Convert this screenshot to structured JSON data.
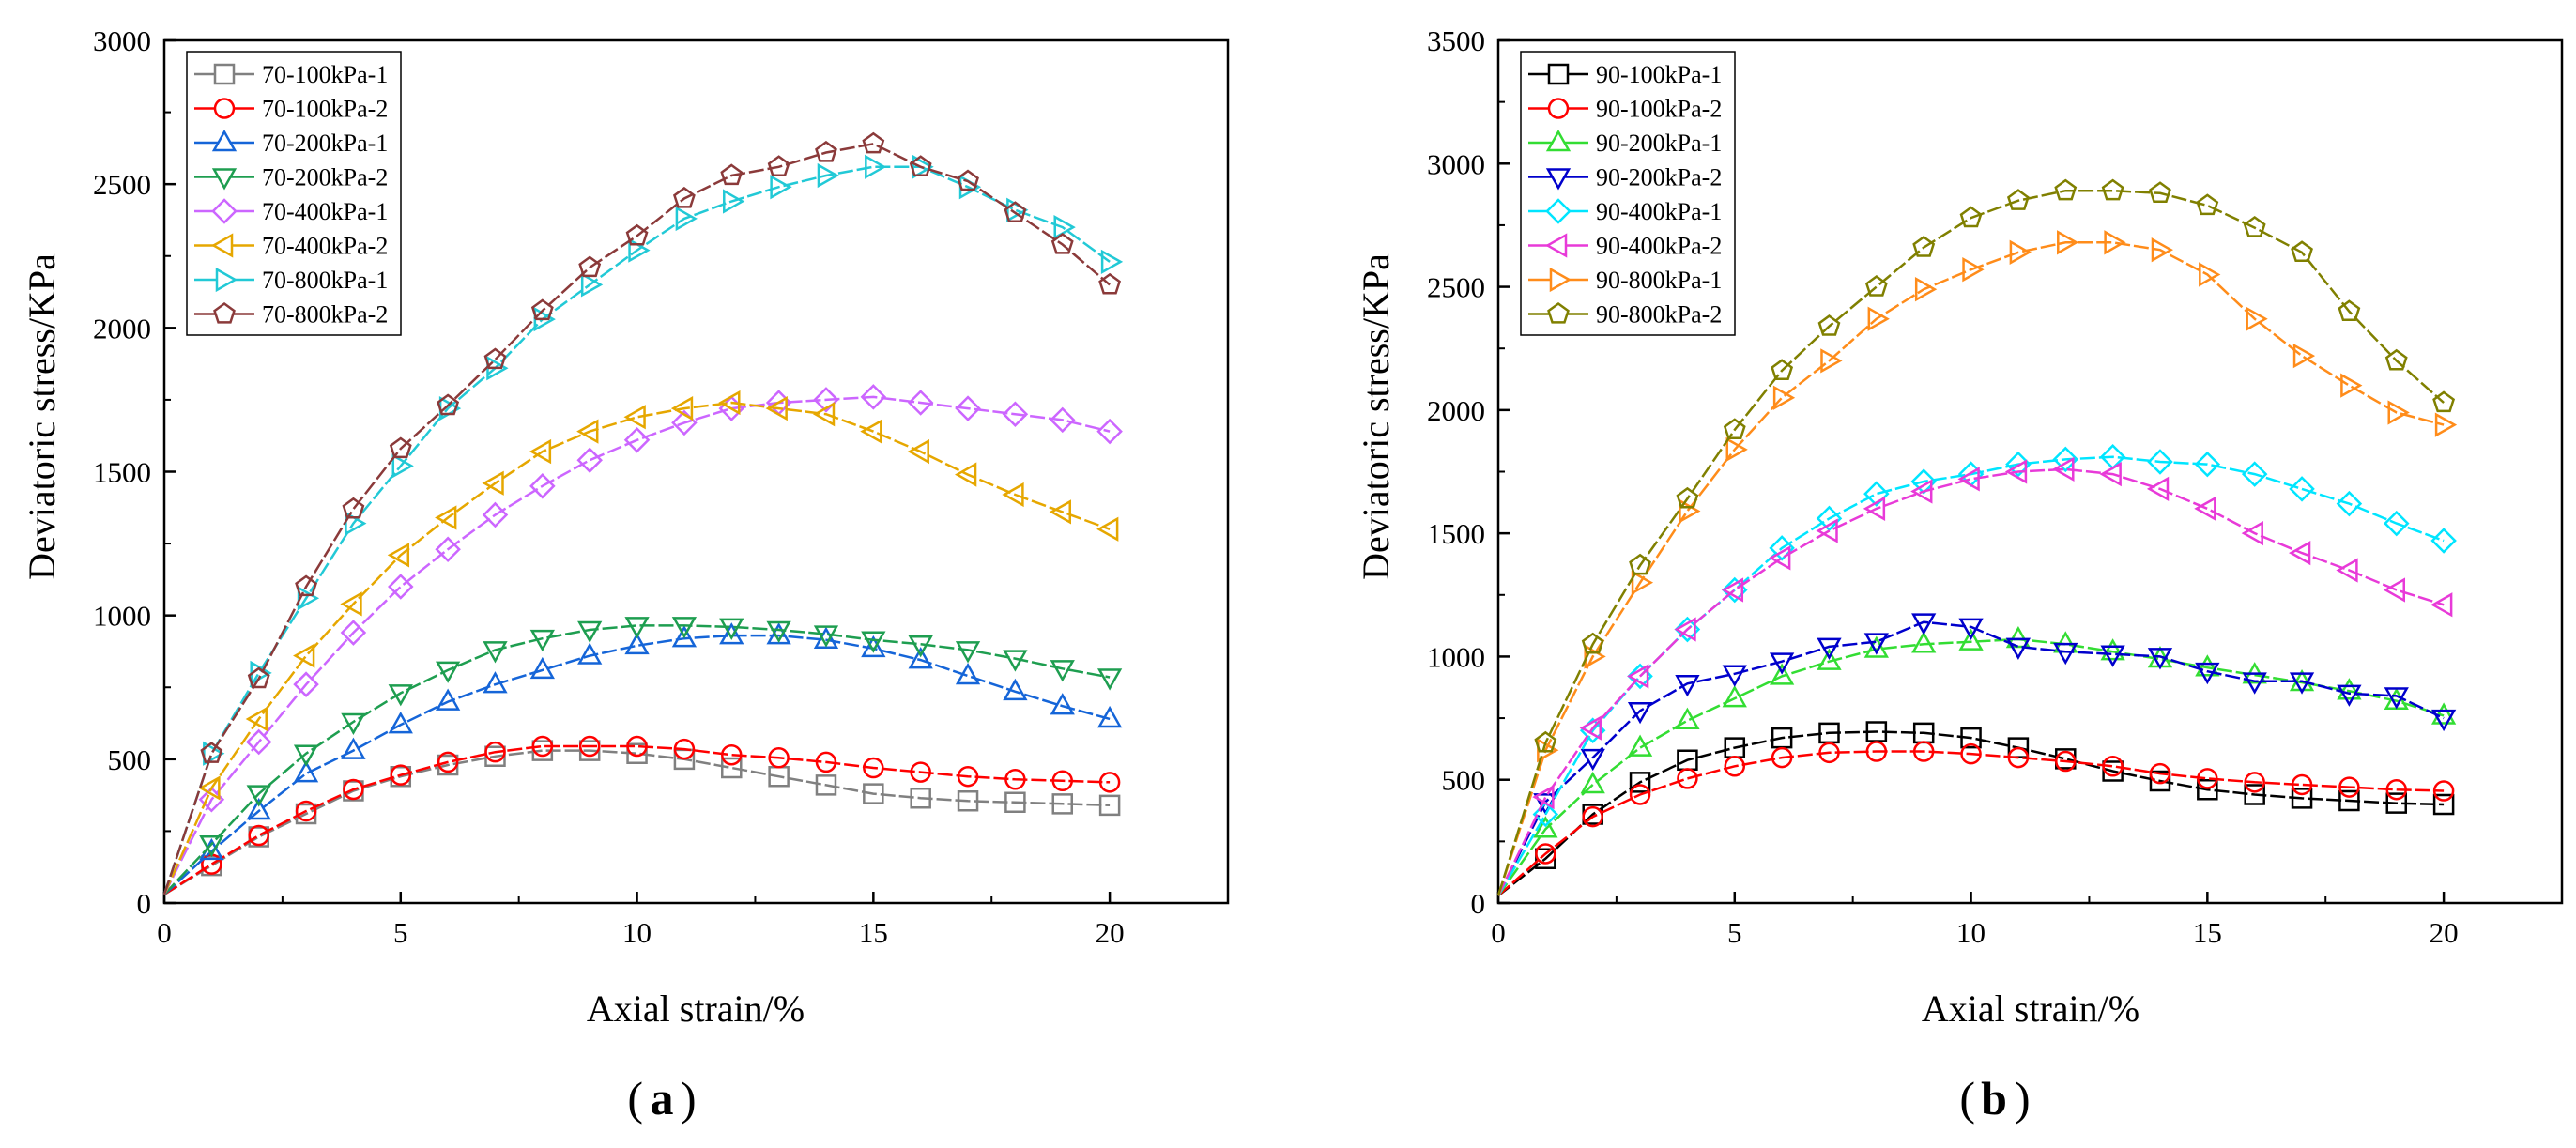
{
  "chart_data": [
    {
      "type": "line",
      "panel_label": "a",
      "xlabel": "Axial strain/%",
      "ylabel": "Deviatoric stress/KPa",
      "xlim": [
        0,
        22.5
      ],
      "ylim": [
        0,
        3000
      ],
      "xticks": [
        0,
        5,
        10,
        15,
        20
      ],
      "yticks": [
        0,
        500,
        1000,
        1500,
        2000,
        2500,
        3000
      ],
      "legend_position": "top-left",
      "x": [
        0,
        1,
        2,
        3,
        4,
        5,
        6,
        7,
        8,
        9,
        10,
        11,
        12,
        13,
        14,
        15,
        16,
        17,
        18,
        19,
        20
      ],
      "series": [
        {
          "name": "70-100kPa-1",
          "color": "#808080",
          "marker": "square",
          "values": [
            30,
            130,
            230,
            310,
            390,
            440,
            480,
            510,
            530,
            530,
            520,
            500,
            470,
            440,
            410,
            380,
            365,
            355,
            350,
            345,
            340
          ]
        },
        {
          "name": "70-100kPa-2",
          "color": "#ff0000",
          "marker": "circle",
          "values": [
            30,
            135,
            235,
            320,
            395,
            445,
            490,
            525,
            545,
            545,
            545,
            535,
            515,
            505,
            490,
            470,
            455,
            440,
            430,
            425,
            420
          ]
        },
        {
          "name": "70-200kPa-1",
          "color": "#1565d8",
          "marker": "triangle-up",
          "values": [
            30,
            180,
            320,
            450,
            530,
            620,
            700,
            760,
            810,
            860,
            895,
            920,
            930,
            930,
            915,
            885,
            845,
            790,
            735,
            685,
            640
          ]
        },
        {
          "name": "70-200kPa-2",
          "color": "#1e9e50",
          "marker": "triangle-down",
          "values": [
            30,
            205,
            380,
            520,
            630,
            730,
            810,
            880,
            920,
            950,
            965,
            965,
            960,
            950,
            935,
            915,
            900,
            880,
            850,
            815,
            785
          ]
        },
        {
          "name": "70-400kPa-1",
          "color": "#cc66ff",
          "marker": "diamond",
          "values": [
            30,
            360,
            560,
            760,
            940,
            1100,
            1230,
            1350,
            1450,
            1540,
            1610,
            1670,
            1720,
            1740,
            1750,
            1760,
            1740,
            1720,
            1700,
            1680,
            1640
          ]
        },
        {
          "name": "70-400kPa-2",
          "color": "#e6a700",
          "marker": "triangle-left",
          "values": [
            30,
            400,
            640,
            860,
            1040,
            1210,
            1340,
            1460,
            1570,
            1640,
            1690,
            1720,
            1740,
            1720,
            1700,
            1640,
            1570,
            1490,
            1420,
            1360,
            1300
          ]
        },
        {
          "name": "70-800kPa-1",
          "color": "#22c9d6",
          "marker": "triangle-right",
          "values": [
            30,
            520,
            800,
            1060,
            1320,
            1520,
            1720,
            1860,
            2030,
            2150,
            2270,
            2380,
            2440,
            2490,
            2530,
            2560,
            2560,
            2490,
            2410,
            2350,
            2230
          ]
        },
        {
          "name": "70-800kPa-2",
          "color": "#8b3a3a",
          "marker": "pentagon",
          "values": [
            30,
            520,
            780,
            1100,
            1370,
            1580,
            1730,
            1890,
            2060,
            2210,
            2320,
            2450,
            2530,
            2560,
            2610,
            2640,
            2560,
            2510,
            2400,
            2290,
            2150
          ]
        }
      ]
    },
    {
      "type": "line",
      "panel_label": "b",
      "xlabel": "Axial strain/%",
      "ylabel": "Deviatoric stress/KPa",
      "xlim": [
        0,
        22.5
      ],
      "ylim": [
        0,
        3500
      ],
      "xticks": [
        0,
        5,
        10,
        15,
        20
      ],
      "yticks": [
        0,
        500,
        1000,
        1500,
        2000,
        2500,
        3000,
        3500
      ],
      "legend_position": "top-left",
      "x": [
        0,
        1,
        2,
        3,
        4,
        5,
        6,
        7,
        8,
        9,
        10,
        11,
        12,
        13,
        14,
        15,
        16,
        17,
        18,
        19,
        20
      ],
      "series": [
        {
          "name": "90-100kPa-1",
          "color": "#000000",
          "marker": "square",
          "values": [
            30,
            180,
            360,
            490,
            580,
            630,
            670,
            690,
            695,
            690,
            670,
            630,
            585,
            535,
            495,
            460,
            440,
            425,
            415,
            405,
            400
          ]
        },
        {
          "name": "90-100kPa-2",
          "color": "#ff0000",
          "marker": "circle",
          "values": [
            30,
            200,
            350,
            440,
            505,
            555,
            590,
            610,
            615,
            615,
            605,
            590,
            575,
            555,
            525,
            505,
            490,
            480,
            470,
            460,
            455
          ]
        },
        {
          "name": "90-200kPa-1",
          "color": "#33dd33",
          "marker": "triangle-up",
          "values": [
            30,
            300,
            480,
            630,
            740,
            830,
            920,
            980,
            1030,
            1050,
            1060,
            1070,
            1050,
            1020,
            990,
            955,
            925,
            895,
            860,
            820,
            760
          ]
        },
        {
          "name": "90-200kPa-2",
          "color": "#0000cc",
          "marker": "triangle-down",
          "values": [
            30,
            410,
            590,
            780,
            890,
            930,
            980,
            1040,
            1060,
            1140,
            1120,
            1040,
            1020,
            1010,
            1000,
            940,
            900,
            900,
            850,
            840,
            750
          ]
        },
        {
          "name": "90-400kPa-1",
          "color": "#00e5ff",
          "marker": "diamond",
          "values": [
            30,
            360,
            700,
            920,
            1110,
            1270,
            1440,
            1560,
            1660,
            1710,
            1740,
            1780,
            1800,
            1810,
            1790,
            1780,
            1740,
            1680,
            1620,
            1540,
            1470
          ]
        },
        {
          "name": "90-400kPa-2",
          "color": "#e83ad8",
          "marker": "triangle-left",
          "values": [
            30,
            430,
            710,
            920,
            1110,
            1270,
            1400,
            1510,
            1600,
            1670,
            1720,
            1750,
            1760,
            1740,
            1680,
            1600,
            1500,
            1420,
            1350,
            1270,
            1210
          ]
        },
        {
          "name": "90-800kPa-1",
          "color": "#ff8c1a",
          "marker": "triangle-right",
          "values": [
            30,
            620,
            1000,
            1300,
            1590,
            1840,
            2050,
            2200,
            2370,
            2490,
            2570,
            2640,
            2680,
            2680,
            2650,
            2550,
            2370,
            2220,
            2100,
            1990,
            1940
          ]
        },
        {
          "name": "90-800kPa-2",
          "color": "#808000",
          "marker": "pentagon",
          "values": [
            30,
            650,
            1050,
            1370,
            1640,
            1920,
            2160,
            2340,
            2500,
            2660,
            2780,
            2850,
            2890,
            2890,
            2880,
            2830,
            2740,
            2640,
            2400,
            2200,
            2030
          ]
        }
      ]
    }
  ]
}
